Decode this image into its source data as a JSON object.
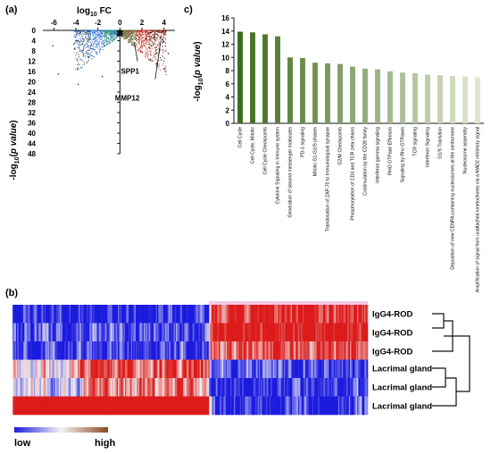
{
  "panels": {
    "a": "(a)",
    "b": "(b)",
    "c": "c)"
  },
  "chart_data": [
    {
      "type": "scatter",
      "panel": "(a)",
      "title": "",
      "xlabel": "log10 FC",
      "ylabel": "-log10(p value)",
      "xlim": [
        -7,
        5
      ],
      "ylim": [
        0,
        48
      ],
      "y_reversed": true,
      "x_ticks": [
        -6,
        -4,
        -2,
        0,
        2,
        4
      ],
      "y_ticks": [
        0,
        4,
        8,
        12,
        16,
        20,
        24,
        28,
        32,
        36,
        40,
        44,
        48
      ],
      "colors": {
        "down": "#3a7fd8",
        "up": "#c0392b",
        "nonsig": "#2e9e54",
        "other": "#111111"
      },
      "annotations": [
        {
          "text": "SPP1",
          "x": 2.2,
          "y": 12
        },
        {
          "text": "MMP12",
          "x": 3.6,
          "y": 14
        }
      ]
    },
    {
      "type": "bar",
      "panel": "c)",
      "title": "",
      "xlabel": "",
      "ylabel": "-log10(p value)",
      "ylim": [
        0,
        16
      ],
      "y_ticks": [
        0,
        2,
        4,
        6,
        8,
        10,
        12,
        14,
        16
      ],
      "categories": [
        "Cell Cycle",
        "Cell Cycle, Mitotic",
        "Cell Cycle Checkpoints",
        "Cytokine Signaling in Immune system",
        "Generation of second messenger molecules",
        "PD-1 signaling",
        "Mitotic G1-G1/S phases",
        "Translocation of ZAP-70 to Immunological synapse",
        "G2/M Checkpoints",
        "Phosphorylation of CD3 and TCR zeta chains",
        "Costimulation by the CD28 family",
        "Interferon gamma signaling",
        "RHO GTPase Effectors",
        "Signaling by Rho GTPases",
        "TCR signaling",
        "Interferon Signaling",
        "G1/S Transition",
        "Deposition of new CENPA-containing nucleosomes at the centromere",
        "Nucleosome assembly",
        "Amplification of signal from unattached kinetochores via a MAD2 inhibitory signal"
      ],
      "values": [
        13.9,
        13.8,
        13.5,
        13.2,
        10.0,
        9.9,
        9.2,
        9.1,
        9.0,
        8.6,
        8.3,
        8.2,
        7.9,
        7.7,
        7.6,
        7.4,
        7.3,
        7.2,
        7.1,
        7.0
      ],
      "colors": {
        "dark": "#3f6b1d",
        "light": "#dfe7cf"
      }
    },
    {
      "type": "heatmap",
      "panel": "(b)",
      "rows": [
        "IgG4-ROD",
        "IgG4-ROD",
        "IgG4-ROD",
        "Lacrimal gland",
        "Lacrimal gland",
        "Lacrimal gland"
      ],
      "legend": {
        "low": "low",
        "high": "high"
      },
      "colors": {
        "low": "#1a1adf",
        "mid": "#f3f3f3",
        "high": "#dd1a1a",
        "legend_high": "#8a4a22"
      }
    }
  ]
}
